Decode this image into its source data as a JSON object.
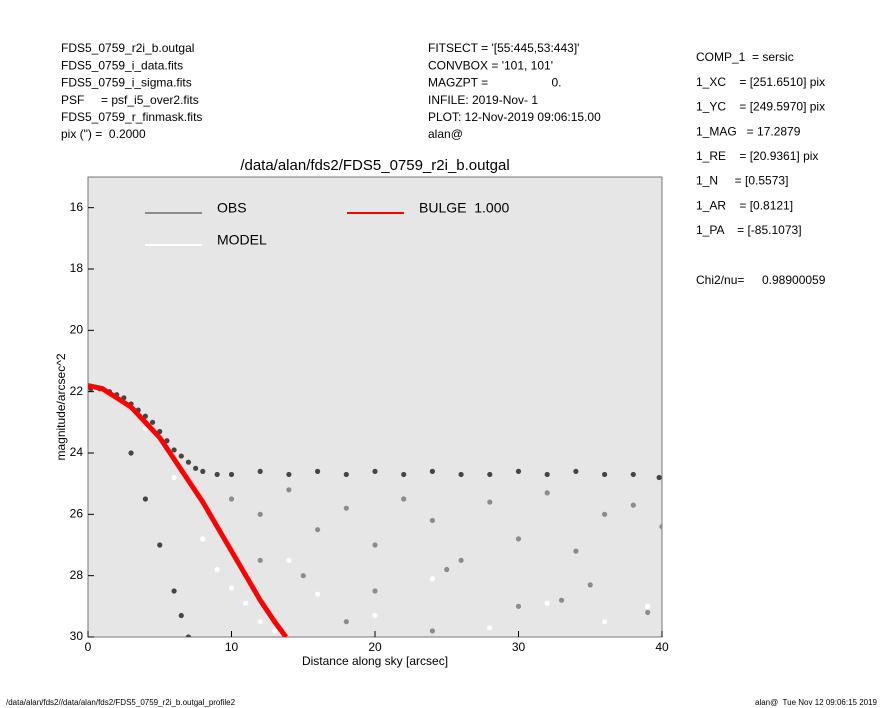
{
  "chart_data": {
    "type": "scatter",
    "title": "/data/alan/fds2/FDS5_0759_r2i_b.outgal",
    "x_label": "Distance along sky [arcsec]",
    "y_label": "magnitude/arcsec^2",
    "xlim": [
      0,
      40
    ],
    "xticks": [
      0,
      10,
      20,
      30,
      40
    ],
    "ylim": [
      15,
      30
    ],
    "yticks": [
      16,
      18,
      20,
      22,
      24,
      26,
      28,
      30
    ],
    "y_inverted": true,
    "background": "#e6e6e6",
    "header_left": [
      "FDS5_0759_r2i_b.outgal",
      "FDS5_0759_i_data.fits",
      "FDS5_0759_i_sigma.fits",
      "PSF     = psf_i5_over2.fits",
      "FDS5_0759_r_finmask.fits",
      "pix (\") =  0.2000"
    ],
    "header_middle": [
      "FITSECT = '[55:445,53:443]'",
      "CONVBOX = '101, 101'",
      "MAGZPT =                   0.",
      "INFILE: 2019-Nov- 1",
      "PLOT: 12-Nov-2019 09:06:15.00",
      "alan@"
    ],
    "header_right": [
      "COMP_1  = sersic",
      "1_XC    = [251.6510] pix",
      "1_YC    = [249.5970] pix",
      "1_MAG   = 17.2879",
      "1_RE    = [20.9361] pix",
      "1_N     = [0.5573]",
      "1_AR    = [0.8121]",
      "1_PA    = [-85.1073]"
    ],
    "chi2_label": "Chi2/nu=",
    "chi2_value": "0.98900059",
    "footer_left": "/data/alan/fds2//data/alan/fds2/FDS5_0759_r2i_b.outgal_profile2",
    "footer_right": "alan@  Tue Nov 12 09:06:15 2019",
    "series": [
      {
        "color": "#8c8c8c",
        "mode": "points",
        "x": [
          10,
          12,
          14,
          16,
          18,
          20,
          22,
          24,
          26,
          28,
          30,
          32,
          34,
          36,
          38,
          40,
          15,
          20,
          25,
          30,
          35,
          39,
          12,
          18,
          24,
          33
        ],
        "values": [
          25.5,
          26.0,
          25.2,
          26.5,
          25.8,
          27.0,
          25.5,
          26.2,
          27.5,
          25.6,
          26.8,
          25.3,
          27.2,
          26.0,
          25.7,
          26.4,
          28.0,
          28.5,
          27.8,
          29.0,
          28.3,
          29.2,
          27.5,
          29.5,
          29.8,
          28.8
        ]
      },
      {
        "name": "OBS",
        "color": "#454545",
        "legend_color": "#8c8c8c",
        "mode": "points",
        "x": [
          0.2,
          0.8,
          1.5,
          2,
          2.5,
          3,
          3.5,
          4,
          4.5,
          5,
          5.5,
          6,
          6.5,
          7,
          7.5,
          8,
          9,
          10,
          12,
          14,
          16,
          18,
          20,
          22,
          24,
          26,
          28,
          30,
          32,
          34,
          36,
          38,
          39.8,
          3,
          4,
          5,
          6,
          6.5,
          7
        ],
        "values": [
          21.9,
          21.9,
          22.0,
          22.1,
          22.2,
          22.4,
          22.6,
          22.8,
          23.0,
          23.3,
          23.6,
          23.9,
          24.1,
          24.3,
          24.5,
          24.6,
          24.7,
          24.7,
          24.6,
          24.7,
          24.6,
          24.7,
          24.6,
          24.7,
          24.6,
          24.7,
          24.7,
          24.6,
          24.7,
          24.6,
          24.7,
          24.7,
          24.8,
          24.0,
          25.5,
          27.0,
          28.5,
          29.3,
          30.0
        ]
      },
      {
        "name": "MODEL",
        "color": "#ffffff",
        "mode": "points",
        "x": [
          0.5,
          2,
          4,
          6,
          8,
          10,
          12,
          14,
          16,
          20,
          24,
          28,
          32,
          36,
          39,
          9,
          11,
          13
        ],
        "values": [
          21.9,
          22.2,
          23.2,
          24.8,
          26.8,
          28.4,
          29.5,
          27.5,
          28.6,
          29.3,
          28.1,
          29.7,
          28.9,
          29.5,
          29.0,
          27.8,
          28.9,
          29.8
        ]
      },
      {
        "name": "BULGE  1.000",
        "color": "#ff0000",
        "mode": "line",
        "x": [
          0,
          1,
          2,
          3,
          4,
          5,
          6,
          7,
          8,
          9,
          10,
          11,
          12,
          13,
          13.8
        ],
        "values": [
          21.8,
          21.9,
          22.2,
          22.5,
          23.0,
          23.5,
          24.2,
          24.9,
          25.6,
          26.4,
          27.2,
          28.0,
          28.8,
          29.5,
          30.0
        ]
      }
    ]
  }
}
